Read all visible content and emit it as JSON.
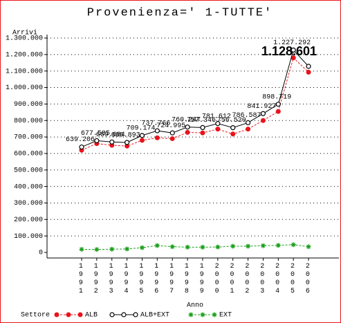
{
  "chart_data": {
    "type": "line",
    "title": "Provenienza=' 1-TUTTE'",
    "y_label": "Arrivi",
    "x_label": "Anno",
    "legend_title": "Settore",
    "categories": [
      "1991",
      "1992",
      "1993",
      "1994",
      "1995",
      "1996",
      "1997",
      "1998",
      "1999",
      "2000",
      "2001",
      "2002",
      "2003",
      "2004",
      "2005",
      "2006"
    ],
    "ylim": [
      0,
      1300000
    ],
    "yticks": [
      {
        "value": 0,
        "label": "0"
      },
      {
        "value": 100000,
        "label": "100.000"
      },
      {
        "value": 200000,
        "label": "200.000"
      },
      {
        "value": 300000,
        "label": "300.000"
      },
      {
        "value": 400000,
        "label": "400.000"
      },
      {
        "value": 500000,
        "label": "500.000"
      },
      {
        "value": 600000,
        "label": "600.000"
      },
      {
        "value": 700000,
        "label": "700.000"
      },
      {
        "value": 800000,
        "label": "800.000"
      },
      {
        "value": 900000,
        "label": "900.000"
      },
      {
        "value": 1000000,
        "label": "1.000.000"
      },
      {
        "value": 1100000,
        "label": "1.100.000"
      },
      {
        "value": 1200000,
        "label": "1.200.000"
      },
      {
        "value": 1300000,
        "label": "1.300.000"
      }
    ],
    "grid": true,
    "series": [
      {
        "name": "ALB",
        "color": "#e8141c",
        "marker": "dot",
        "values": [
          620000,
          660000,
          650000,
          645000,
          680000,
          695000,
          690000,
          728000,
          725000,
          748000,
          718000,
          748000,
          800000,
          855000,
          1180000,
          1093000
        ]
      },
      {
        "name": "ALB+EXT",
        "color": "#000000",
        "marker": "circle",
        "values": [
          639206,
          677585,
          669684,
          666893,
          709174,
          737766,
          724995,
          760247,
          757346,
          781612,
          756520,
          786587,
          841927,
          898719,
          1227292,
          1128601
        ],
        "value_labels": [
          "639.206",
          "677.585",
          "669.684",
          "666.893",
          "709.174",
          "737.766",
          "724.995",
          "760.247",
          "757.346",
          "781.612",
          "756.520",
          "786.587",
          "841.927",
          "898.719",
          "1.227.292",
          "1.128.601"
        ]
      },
      {
        "name": "EXT",
        "color": "#1a9e1a",
        "marker": "star",
        "values": [
          19000,
          18000,
          20000,
          21000,
          29000,
          42000,
          35000,
          32000,
          32000,
          33000,
          38000,
          38000,
          41000,
          43000,
          47000,
          35000
        ]
      }
    ]
  }
}
